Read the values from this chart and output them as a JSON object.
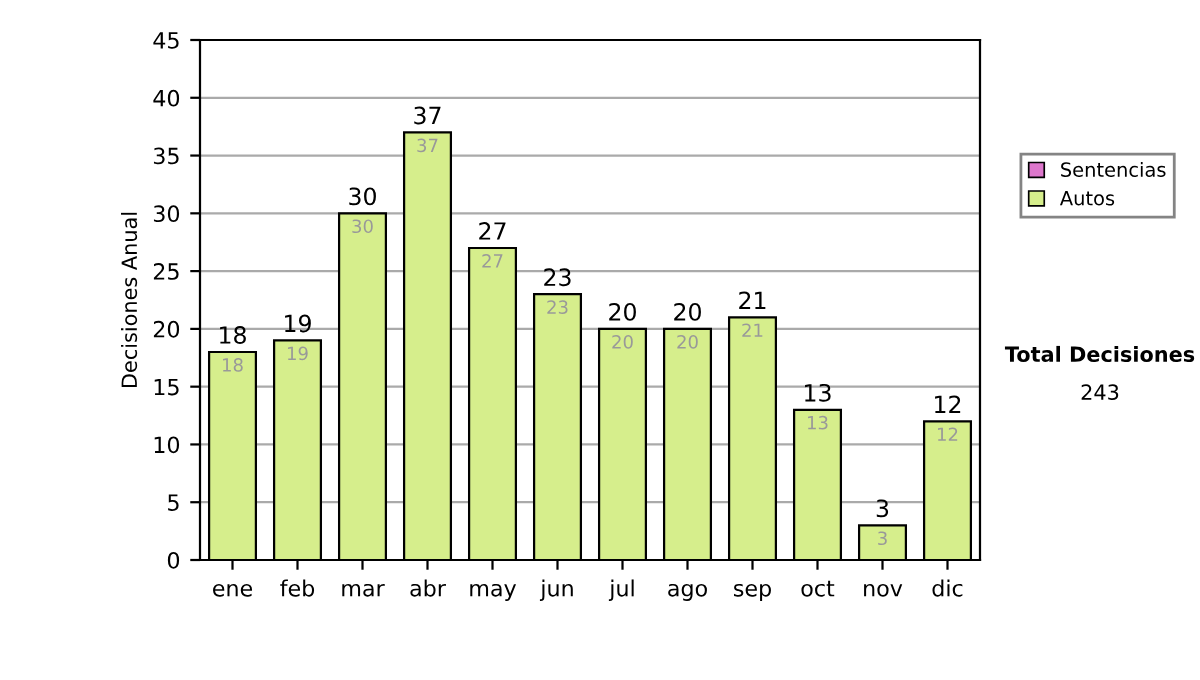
{
  "chart_data": {
    "type": "bar",
    "stacked": true,
    "ylabel": "Decisiones Anual",
    "categories": [
      "ene",
      "feb",
      "mar",
      "abr",
      "may",
      "jun",
      "jul",
      "ago",
      "sep",
      "oct",
      "nov",
      "dic"
    ],
    "series": [
      {
        "name": "Sentencias",
        "color": "#dd77cc",
        "values": [
          null,
          null,
          null,
          null,
          null,
          null,
          null,
          null,
          null,
          null,
          null,
          null
        ]
      },
      {
        "name": "Autos",
        "color": "#d6ee8c",
        "values": [
          18,
          19,
          30,
          37,
          27,
          23,
          20,
          20,
          21,
          13,
          3,
          12
        ],
        "value_labels": [
          "18",
          "19",
          "30",
          "37",
          "27",
          "23",
          "20",
          "20",
          "21",
          "13",
          "3",
          "12"
        ]
      }
    ],
    "totals": [
      "18",
      "19",
      "30",
      "37",
      "27",
      "23",
      "20",
      "20",
      "21",
      "13",
      "3",
      "12"
    ],
    "ylim": [
      0,
      45
    ],
    "yticks": [
      0,
      5,
      10,
      15,
      20,
      25,
      30,
      35,
      40,
      45
    ],
    "grid": "y",
    "legend": "right",
    "annotations": [
      "Total Decisiones",
      "243"
    ]
  }
}
